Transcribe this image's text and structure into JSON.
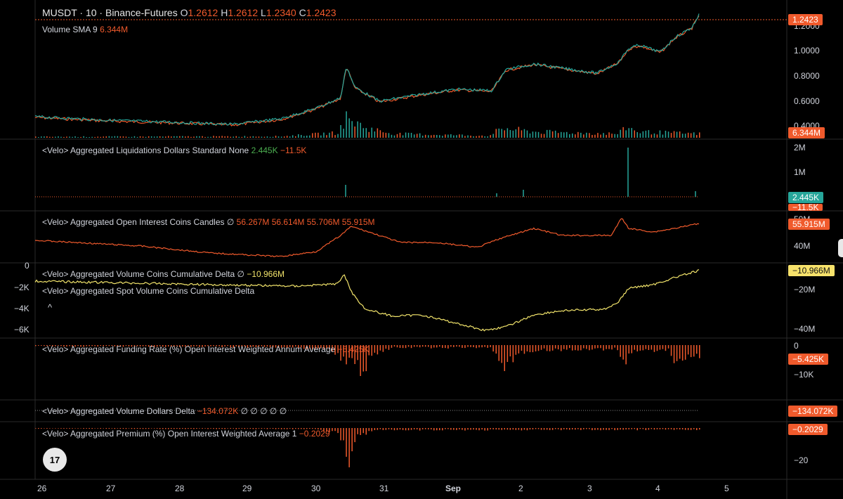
{
  "header": {
    "symbol": "MUSDT · 10 · Binance-Futures",
    "o_label": "O",
    "o_value": "1.2612",
    "h_label": "H",
    "h_value": "1.2612",
    "l_label": "L",
    "l_value": "1.2340",
    "c_label": "C",
    "c_value": "1.2423",
    "volume_label": "Volume SMA 9",
    "volume_value": "6.344M"
  },
  "panes": {
    "liquidations": {
      "label": "<Velo> Aggregated Liquidations Dollars Standard None",
      "value1": "2.445K",
      "value2": "−11.5K"
    },
    "open_interest": {
      "label": "<Velo> Aggregated Open Interest Coins Candles",
      "icon": "∅",
      "values": [
        "56.267M",
        "56.614M",
        "55.706M",
        "55.915M"
      ]
    },
    "volume_delta": {
      "label": "<Velo> Aggregated Volume Coins Cumulative Delta",
      "icon": "∅",
      "value": "−10.966M",
      "label2": "<Velo> Aggregated Spot Volume Coins Cumulative Delta",
      "caret": "^"
    },
    "funding": {
      "label": "<Velo> Aggregated Funding Rate (%) Open Interest Weighted Annum Average",
      "value": "−5.425K"
    },
    "volume_dollars": {
      "label": "<Velo> Aggregated Volume Dollars Delta",
      "value": "−134.072K",
      "icons": "∅ ∅ ∅ ∅ ∅"
    },
    "premium": {
      "label": "<Velo> Aggregated Premium (%) Open Interest Weighted Average 1",
      "value": "−0.2029"
    }
  },
  "right_axis": {
    "price": [
      "1.2000",
      "1.0000",
      "0.8000",
      "0.6000",
      "0.4000"
    ],
    "liq": [
      "2M",
      "1M"
    ],
    "oi": [
      "50M",
      "40M"
    ],
    "vd": [
      "−20M",
      "−40M"
    ],
    "funding": [
      "0",
      "−10K"
    ],
    "premium": [
      "−20"
    ]
  },
  "left_axis": [
    "0",
    "−2K",
    "−4K",
    "−6K"
  ],
  "tags": {
    "price": "1.2423",
    "volume": "6.344M",
    "liq_pos": "2.445K",
    "liq_neg": "−11.5K",
    "oi": "55.915M",
    "vd": "−10.966M",
    "funding": "−5.425K",
    "vol_dollars": "−134.072K",
    "premium": "−0.2029"
  },
  "dates": [
    "26",
    "27",
    "28",
    "29",
    "30",
    "31",
    "Sep",
    "2",
    "3",
    "4",
    "5"
  ],
  "logo": "17",
  "colors": {
    "up": "#26a69a",
    "down": "#f05a2c",
    "line": "#f2e46b",
    "accent": "#f05a2c"
  }
}
